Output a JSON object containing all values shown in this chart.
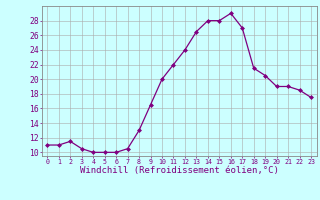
{
  "x": [
    0,
    1,
    2,
    3,
    4,
    5,
    6,
    7,
    8,
    9,
    10,
    11,
    12,
    13,
    14,
    15,
    16,
    17,
    18,
    19,
    20,
    21,
    22,
    23
  ],
  "y": [
    11,
    11,
    11.5,
    10.5,
    10,
    10,
    10,
    10.5,
    13,
    16.5,
    20,
    22,
    24,
    26.5,
    28,
    28,
    29,
    27,
    21.5,
    20.5,
    19,
    19,
    18.5,
    17.5
  ],
  "line_color": "#800080",
  "marker": "D",
  "marker_size": 2.0,
  "bg_color": "#ccffff",
  "grid_color": "#aaaaaa",
  "xlabel": "Windchill (Refroidissement éolien,°C)",
  "xlabel_fontsize": 6.5,
  "ylabel_ticks": [
    10,
    12,
    14,
    16,
    18,
    20,
    22,
    24,
    26,
    28
  ],
  "ylim": [
    9.5,
    30
  ],
  "xlim": [
    -0.5,
    23.5
  ],
  "xtick_fontsize": 4.8,
  "ytick_fontsize": 5.8,
  "tick_color": "#800080",
  "spine_color": "#888888",
  "linewidth": 0.9
}
